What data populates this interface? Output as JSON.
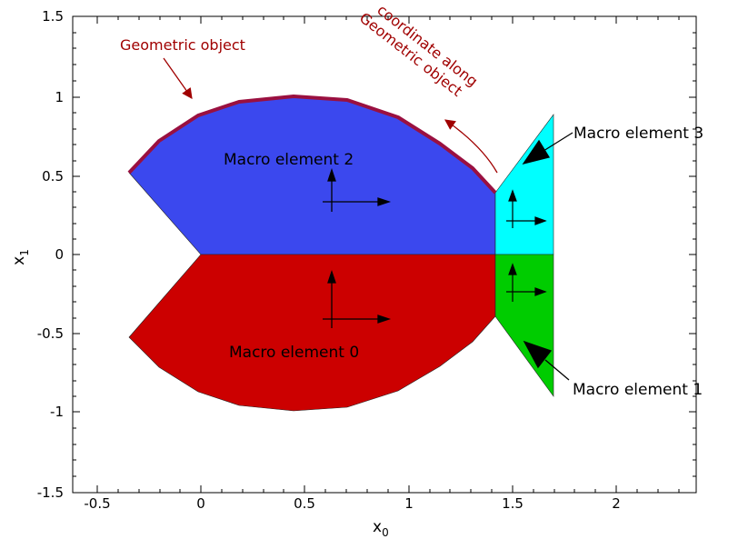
{
  "axes": {
    "xlabel": "x",
    "xlabel_sub": "0",
    "ylabel": "x",
    "ylabel_sub": "1",
    "xlim": [
      -0.6,
      2.4
    ],
    "ylim": [
      -1.5,
      1.5
    ],
    "x_ticks": [
      "-0.5",
      "0",
      "0.5",
      "1",
      "1.5",
      "2"
    ],
    "y_ticks": [
      "1.5",
      "1",
      "0.5",
      "0",
      "-0.5",
      "-1",
      "-1.5"
    ]
  },
  "labels": {
    "geometric_object": "Geometric object",
    "coordinate_line1": "coordinate along",
    "coordinate_line2": "Geometric object",
    "macro_0": "Macro element 0",
    "macro_1": "Macro element 1",
    "macro_2": "Macro element 2",
    "macro_3": "Macro element 3"
  },
  "colors": {
    "macro_0": "#cc0000",
    "macro_1": "#00cc00",
    "macro_2": "#3b48ee",
    "macro_3": "#00ffff",
    "geometric_object": "#9a1040",
    "annotation": "#a00000"
  }
}
